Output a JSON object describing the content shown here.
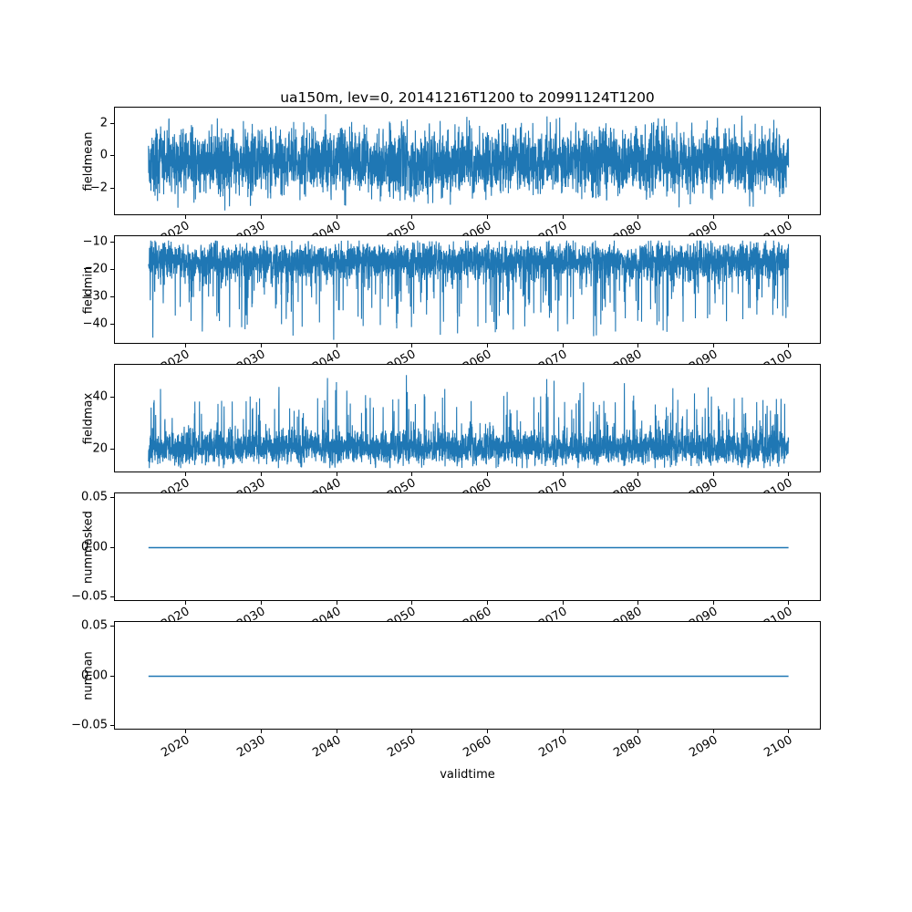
{
  "title": "ua150m, lev=0, 20141216T1200 to 20991124T1200",
  "x_axis": {
    "label": "validtime",
    "ticks": [
      2020,
      2030,
      2040,
      2050,
      2060,
      2070,
      2080,
      2090,
      2100
    ],
    "tick_labels": [
      "2020",
      "2030",
      "2040",
      "2050",
      "2060",
      "2070",
      "2080",
      "2090",
      "2100"
    ],
    "limits": [
      2010.5,
      2104.3
    ],
    "data_range": [
      2014.96,
      2099.9
    ]
  },
  "style": {
    "line_color": "#1f77b4",
    "axis_color": "#000000",
    "background": "#ffffff"
  },
  "chart_data": [
    {
      "type": "line",
      "ylabel": "fieldmean",
      "ylim": [
        -3.7,
        3.0
      ],
      "yticks": [
        2,
        0,
        -2
      ],
      "ytick_labels": [
        "2",
        "0",
        "−2"
      ],
      "series": [
        {
          "name": "fieldmean",
          "kind": "noise",
          "seed": 42,
          "n": 4000,
          "mean": -0.35,
          "std": 1.0,
          "clip": [
            -3.5,
            2.85
          ],
          "spike_prob": 0,
          "spike_dir": 0,
          "spike_scale": 0,
          "observed": {
            "approx_mean": -0.35,
            "approx_min": -3.5,
            "approx_max": 2.8
          }
        }
      ]
    },
    {
      "type": "line",
      "ylabel": "fieldmin",
      "ylim": [
        -47.3,
        -7.7
      ],
      "yticks": [
        -10,
        -20,
        -30,
        -40
      ],
      "ytick_labels": [
        "−10",
        "−20",
        "−30",
        "−40"
      ],
      "series": [
        {
          "name": "fieldmin",
          "kind": "noise",
          "seed": 7,
          "n": 4000,
          "mean": -16.5,
          "std": 3.2,
          "clip": [
            -45.5,
            -9.3
          ],
          "spike_prob": 0.15,
          "spike_dir": -1,
          "spike_scale": 25,
          "observed": {
            "approx_mean": -17,
            "approx_min": -45,
            "approx_max": -10
          }
        }
      ]
    },
    {
      "type": "line",
      "ylabel": "fieldmax",
      "ylim": [
        11.0,
        52.4
      ],
      "yticks": [
        20,
        40
      ],
      "ytick_labels": [
        "20",
        "40"
      ],
      "series": [
        {
          "name": "fieldmax",
          "kind": "noise",
          "seed": 13,
          "n": 4000,
          "mean": 20.5,
          "std": 3.0,
          "clip": [
            13.0,
            50.6
          ],
          "spike_prob": 0.12,
          "spike_dir": 1,
          "spike_scale": 22,
          "observed": {
            "approx_mean": 21,
            "approx_min": 14,
            "approx_max": 50
          }
        }
      ]
    },
    {
      "type": "line",
      "ylabel": "nummasked",
      "ylim": [
        -0.055,
        0.055
      ],
      "yticks": [
        0.05,
        0.0,
        -0.05
      ],
      "ytick_labels": [
        "0.05",
        "0.00",
        "−0.05"
      ],
      "series": [
        {
          "name": "nummasked",
          "kind": "constant",
          "value": 0,
          "n": 2,
          "observed": {
            "constant_value": 0
          }
        }
      ]
    },
    {
      "type": "line",
      "ylabel": "numnan",
      "ylim": [
        -0.055,
        0.055
      ],
      "yticks": [
        0.05,
        0.0,
        -0.05
      ],
      "ytick_labels": [
        "0.05",
        "0.00",
        "−0.05"
      ],
      "series": [
        {
          "name": "numnan",
          "kind": "constant",
          "value": 0,
          "n": 2,
          "observed": {
            "constant_value": 0
          }
        }
      ]
    }
  ]
}
